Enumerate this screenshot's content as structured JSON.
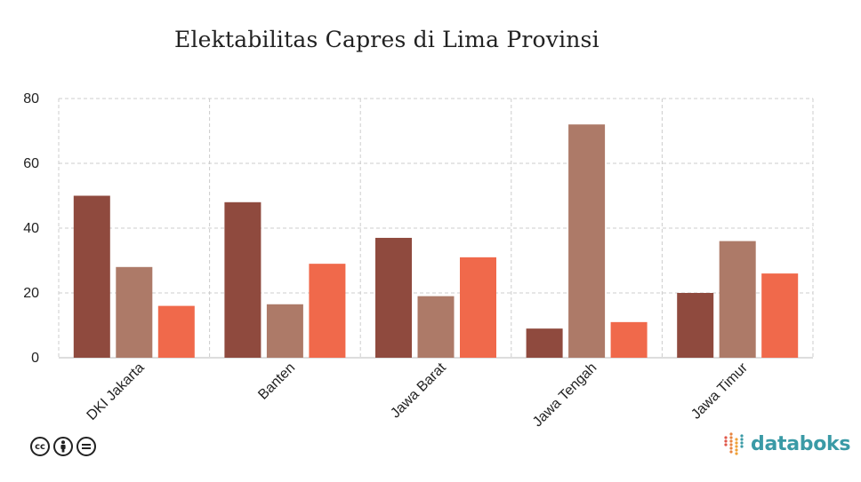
{
  "title": "Elektabilitas Capres di Lima Provinsi",
  "brand": {
    "name": "databoks",
    "accent": "#3a9aa6",
    "logo_dots": [
      "#e0574a",
      "#e8843f",
      "#f0a035",
      "#3a9aa6"
    ]
  },
  "license_icons": [
    "cc-icon",
    "attribution-icon",
    "no-derivatives-icon"
  ],
  "chart_data": {
    "type": "bar",
    "title": "Elektabilitas Capres di Lima Provinsi",
    "categories": [
      "DKI Jakarta",
      "Banten",
      "Jawa Barat",
      "Jawa Tengah",
      "Jawa Timur"
    ],
    "series": [
      {
        "values": [
          50,
          48,
          37,
          9,
          20
        ],
        "color": "#8f4a3e"
      },
      {
        "values": [
          28,
          16.5,
          19,
          72,
          36
        ],
        "color": "#ad7a68"
      },
      {
        "values": [
          16,
          29,
          31,
          11,
          26
        ],
        "color": "#f0694b"
      }
    ],
    "ylim": [
      0,
      80
    ],
    "yticks": [
      0,
      20,
      40,
      60,
      80
    ],
    "grid": true
  }
}
